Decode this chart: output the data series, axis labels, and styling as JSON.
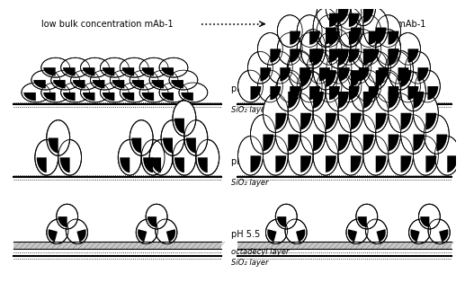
{
  "title_left": "low bulk concentration mAb-1",
  "title_right": "high bulk concentration mAb-1",
  "bg_color": "#ffffff",
  "labels": {
    "ph55_top": "pH 5.5",
    "ph74": "pH 7.4",
    "ph55_bot": "pH 5.5",
    "sio2": "SiO₂ layer",
    "octadecyl": "octadecyl layer"
  }
}
